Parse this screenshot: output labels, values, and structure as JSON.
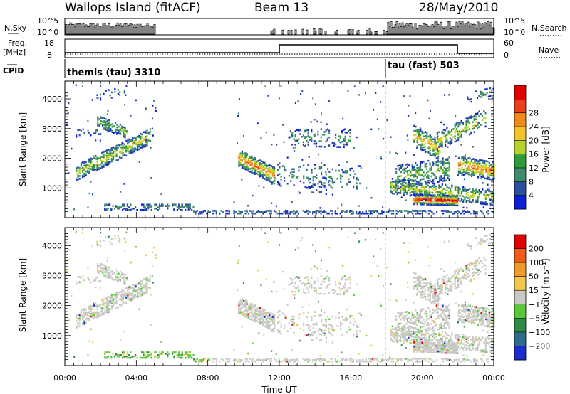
{
  "header": {
    "station": "Wallops Island (fitACF)",
    "beam": "Beam 13",
    "date": "28/May/2010"
  },
  "panels": {
    "nsky": {
      "left_label": "N.Sky",
      "tick_top": "10^5",
      "tick_bottom": "10^0",
      "right_label": "N.Search",
      "right_tick_top": "10^5",
      "right_tick_bottom": "10^0"
    },
    "freq": {
      "label_line1": "Freq.",
      "label_line2": "[MHz]",
      "tick_top": "18",
      "tick_bottom": "8",
      "right_label": "Nave",
      "right_tick_top": "60",
      "right_tick_bottom": "0"
    },
    "cpid": {
      "label": "CPID",
      "mode1": "themis (tau) 3310",
      "mode2": "tau (fast) 503"
    }
  },
  "chart_data": [
    {
      "type": "heatmap",
      "name": "power",
      "ylabel": "Slant Range [km]",
      "yticks": [
        "1000",
        "2000",
        "3000",
        "4000"
      ],
      "xticks": [
        "00:00",
        "04:00",
        "08:00",
        "12:00",
        "16:00",
        "20:00",
        "00:00"
      ],
      "colorbar_label": "Power [dB]",
      "colorbar_ticks": [
        "4",
        "8",
        "12",
        "16",
        "20",
        "24",
        "28"
      ],
      "colors": [
        "#0a1fd6",
        "#2b4fa0",
        "#3f8a6a",
        "#2f9a3a",
        "#b7d22a",
        "#f0c42a",
        "#f08a1a",
        "#e8401a",
        "#e00000"
      ]
    },
    {
      "type": "heatmap",
      "name": "velocity",
      "ylabel": "Slant Range [km]",
      "yticks": [
        "1000",
        "2000",
        "3000",
        "4000"
      ],
      "xticks": [
        "00:00",
        "04:00",
        "08:00",
        "12:00",
        "16:00",
        "20:00",
        "00:00"
      ],
      "xlabel": "Time UT",
      "colorbar_label": "Velocity [m s⁻¹]",
      "colorbar_ticks": [
        "200",
        "100",
        "50",
        "15",
        "−15",
        "−50",
        "−100",
        "−200"
      ],
      "colors": [
        "#1a2ccc",
        "#2f6a8c",
        "#2f8a4a",
        "#5ac83a",
        "#c8c8c4",
        "#f0c84a",
        "#f09a2a",
        "#f05a1a",
        "#e00000"
      ]
    }
  ]
}
